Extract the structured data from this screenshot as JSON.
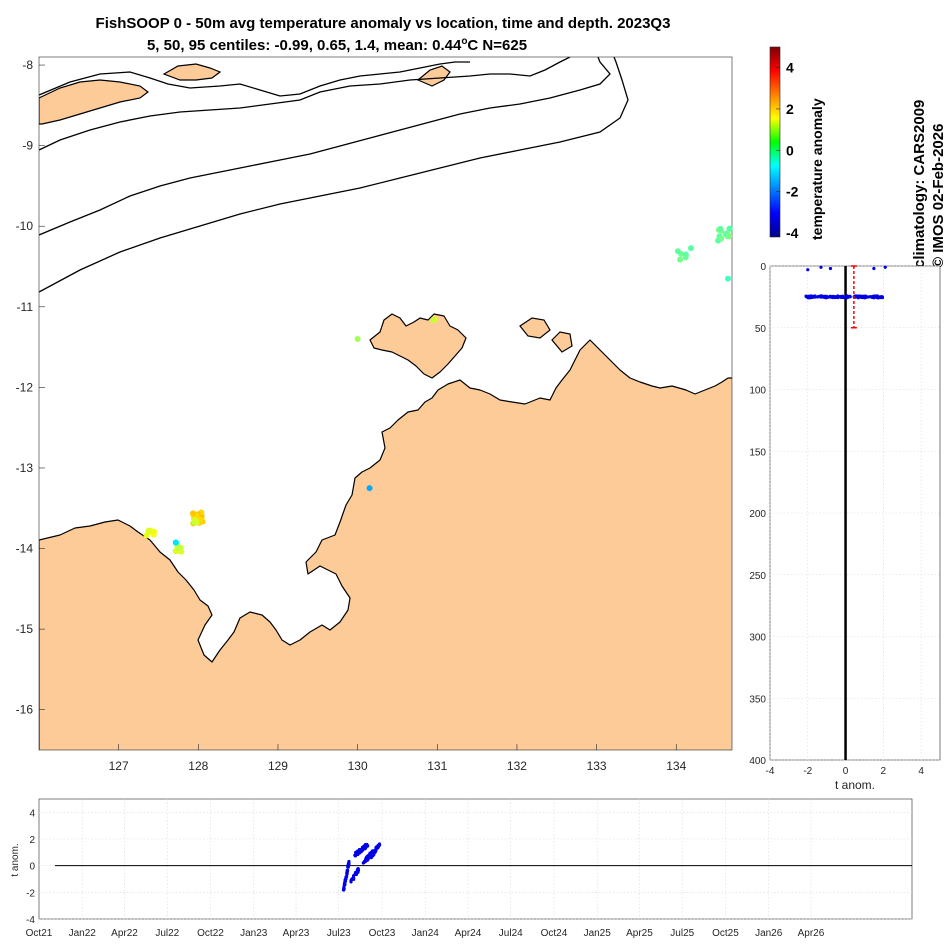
{
  "title": {
    "line1": "FishSOOP 0 - 50m avg temperature anomaly vs location, time and depth. 2023Q3",
    "line2_prefix": "5, 50, 95 centiles: -0.99, 0.65, 1.4, mean: 0.44",
    "line2_degree": "o",
    "line2_suffix": "C N=625"
  },
  "side_text": {
    "climatology": "climatology: CARS2009",
    "copyright": "© IMOS 02-Feb-2026"
  },
  "colors": {
    "land": "#fdcb98",
    "coast": "#000000",
    "points_blue": "#0000e6",
    "mean_bar": "#ff0000",
    "grid": "#d9d9d9"
  },
  "chart_data": [
    {
      "id": "map",
      "type": "scatter",
      "title": "FishSOOP 0 - 50m avg temperature anomaly vs location, time and depth. 2023Q3",
      "xlim": [
        126,
        134.7
      ],
      "ylim": [
        -16.5,
        -7.9
      ],
      "xticks": [
        "127",
        "128",
        "129",
        "130",
        "131",
        "132",
        "133",
        "134"
      ],
      "xtick_values": [
        127,
        128,
        129,
        130,
        131,
        132,
        133,
        134
      ],
      "yticks": [
        "-8",
        "-9",
        "-10",
        "-11",
        "-12",
        "-13",
        "-14",
        "-15",
        "-16"
      ],
      "ytick_values": [
        -8,
        -9,
        -10,
        -11,
        -12,
        -13,
        -14,
        -15,
        -16
      ],
      "clusters": [
        {
          "lon": 134.6,
          "lat": -10.1,
          "count": 12,
          "spread": 0.08,
          "anom": 0.2
        },
        {
          "lon": 134.1,
          "lat": -10.35,
          "count": 6,
          "spread": 0.1,
          "anom": 0.1
        },
        {
          "lon": 134.65,
          "lat": -10.65,
          "count": 1,
          "spread": 0.0,
          "anom": 0.0
        },
        {
          "lon": 130.95,
          "lat": -11.15,
          "count": 3,
          "spread": 0.02,
          "anom": 1.2
        },
        {
          "lon": 130.0,
          "lat": -11.4,
          "count": 1,
          "spread": 0.0,
          "anom": 0.9
        },
        {
          "lon": 130.15,
          "lat": -13.25,
          "count": 1,
          "spread": 0.0,
          "anom": -1.4
        },
        {
          "lon": 128.0,
          "lat": -13.62,
          "count": 20,
          "spread": 0.07,
          "anom": 2.0
        },
        {
          "lon": 127.95,
          "lat": -13.66,
          "count": 4,
          "spread": 0.03,
          "anom": 1.0
        },
        {
          "lon": 127.4,
          "lat": -13.8,
          "count": 6,
          "spread": 0.05,
          "anom": 1.4
        },
        {
          "lon": 127.75,
          "lat": -14.0,
          "count": 8,
          "spread": 0.04,
          "anom": 1.1
        },
        {
          "lon": 127.72,
          "lat": -13.93,
          "count": 2,
          "spread": 0.01,
          "anom": -0.8
        }
      ]
    },
    {
      "id": "colorbar",
      "type": "heatmap",
      "label": "temperature anomaly",
      "range": [
        -4.2,
        5
      ],
      "ticks": [
        "4",
        "2",
        "0",
        "-2",
        "-4"
      ],
      "tick_values": [
        4,
        2,
        0,
        -2,
        -4
      ]
    },
    {
      "id": "depth_profile",
      "type": "scatter",
      "xlabel": "t anom.",
      "xlim": [
        -4,
        5
      ],
      "ylim": [
        0,
        400
      ],
      "xticks": [
        "-4",
        "-2",
        "0",
        "2",
        "4"
      ],
      "xtick_values": [
        -4,
        -2,
        0,
        2,
        4
      ],
      "yticks": [
        "0",
        "50",
        "100",
        "150",
        "200",
        "250",
        "300",
        "350",
        "400"
      ],
      "ytick_values": [
        0,
        50,
        100,
        150,
        200,
        250,
        300,
        350,
        400
      ],
      "band": {
        "depth": 25,
        "xmin": -2.1,
        "xmax": 2.0,
        "count": 140,
        "spread": 0.8
      },
      "surface_points": [
        [
          -2.0,
          3
        ],
        [
          -1.3,
          1
        ],
        [
          -0.8,
          2
        ],
        [
          1.5,
          2
        ],
        [
          2.1,
          1
        ]
      ],
      "mean_line": {
        "x": 0.44,
        "ymin": 0,
        "ymax": 50
      },
      "zero_line_x": 0
    },
    {
      "id": "time_series",
      "type": "scatter",
      "ylabel": "t anom.",
      "xlim": [
        0,
        1858
      ],
      "ylim": [
        -4,
        5
      ],
      "yticks": [
        "4",
        "2",
        "0",
        "-2",
        "-4"
      ],
      "ytick_values": [
        4,
        2,
        0,
        -2,
        -4
      ],
      "xticks": [
        "Oct21",
        "Jan22",
        "Apr22",
        "Jul22",
        "Oct22",
        "Jan23",
        "Apr23",
        "Jul23",
        "Oct23",
        "Jan24",
        "Apr24",
        "Jul24",
        "Oct24",
        "Jan25",
        "Apr25",
        "Jul25",
        "Oct25",
        "Jan26",
        "Apr26"
      ],
      "xtick_values": [
        0,
        92,
        182,
        273,
        365,
        457,
        547,
        638,
        730,
        822,
        913,
        1004,
        1096,
        1188,
        1278,
        1369,
        1461,
        1553,
        1643
      ],
      "segments": [
        {
          "t0": 648,
          "t1": 660,
          "a0": -1.9,
          "a1": 0.3,
          "count": 50
        },
        {
          "t0": 664,
          "t1": 680,
          "a0": -1.2,
          "a1": -0.3,
          "count": 30
        },
        {
          "t0": 672,
          "t1": 700,
          "a0": 0.8,
          "a1": 1.6,
          "count": 60
        },
        {
          "t0": 690,
          "t1": 712,
          "a0": 0.2,
          "a1": 1.1,
          "count": 50
        },
        {
          "t0": 705,
          "t1": 725,
          "a0": 0.6,
          "a1": 1.6,
          "count": 50
        }
      ]
    }
  ]
}
